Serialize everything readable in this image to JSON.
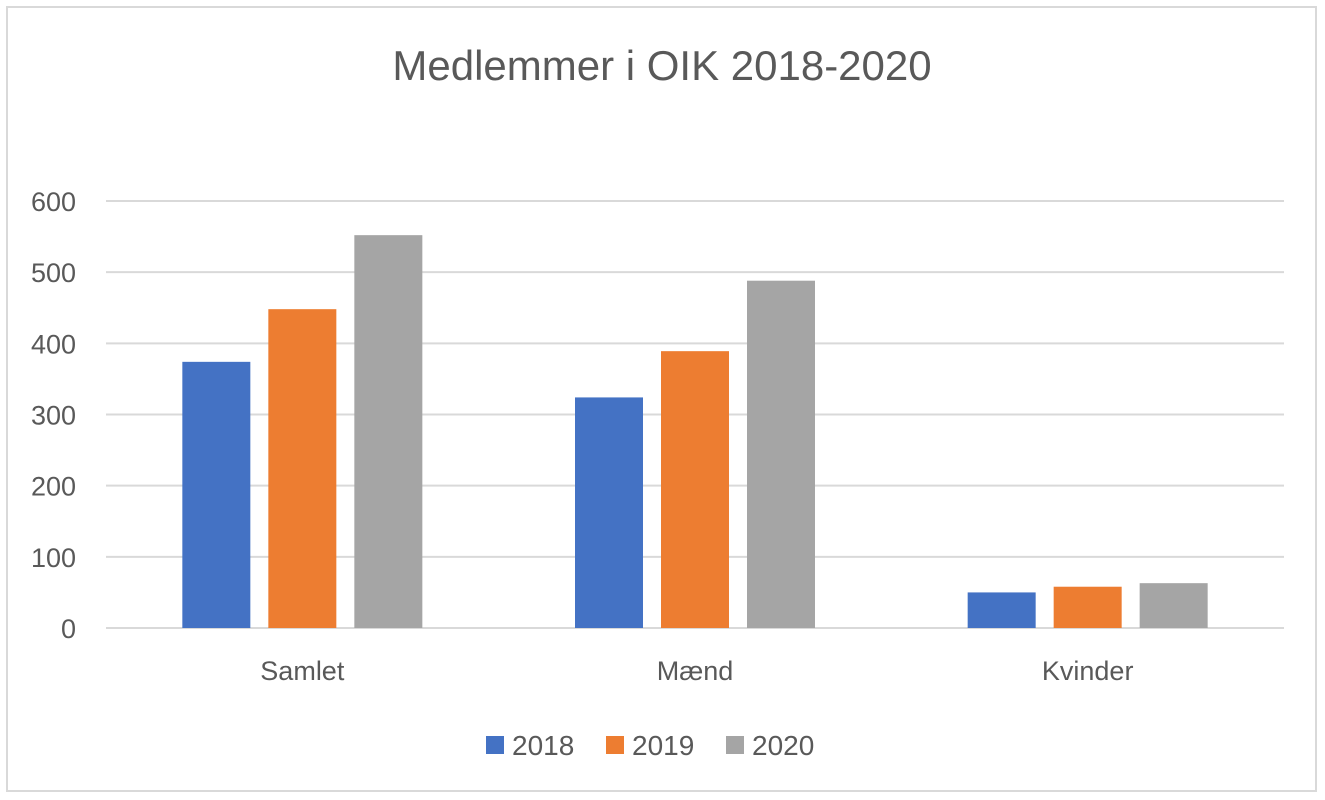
{
  "chart_data": {
    "type": "bar",
    "title": "Medlemmer i OIK 2018-2020",
    "xlabel": "",
    "ylabel": "",
    "categories": [
      "Samlet",
      "Mænd",
      "Kvinder"
    ],
    "series": [
      {
        "name": "2018",
        "color": "#4472c4",
        "values": [
          374,
          324,
          50
        ]
      },
      {
        "name": "2019",
        "color": "#ed7d31",
        "values": [
          448,
          389,
          58
        ]
      },
      {
        "name": "2020",
        "color": "#a5a5a5",
        "values": [
          552,
          488,
          63
        ]
      }
    ],
    "ylim": [
      0,
      600
    ],
    "yticks": [
      "0",
      "100",
      "200",
      "300",
      "400",
      "500",
      "600"
    ],
    "grid": true,
    "legend": "bottom"
  }
}
